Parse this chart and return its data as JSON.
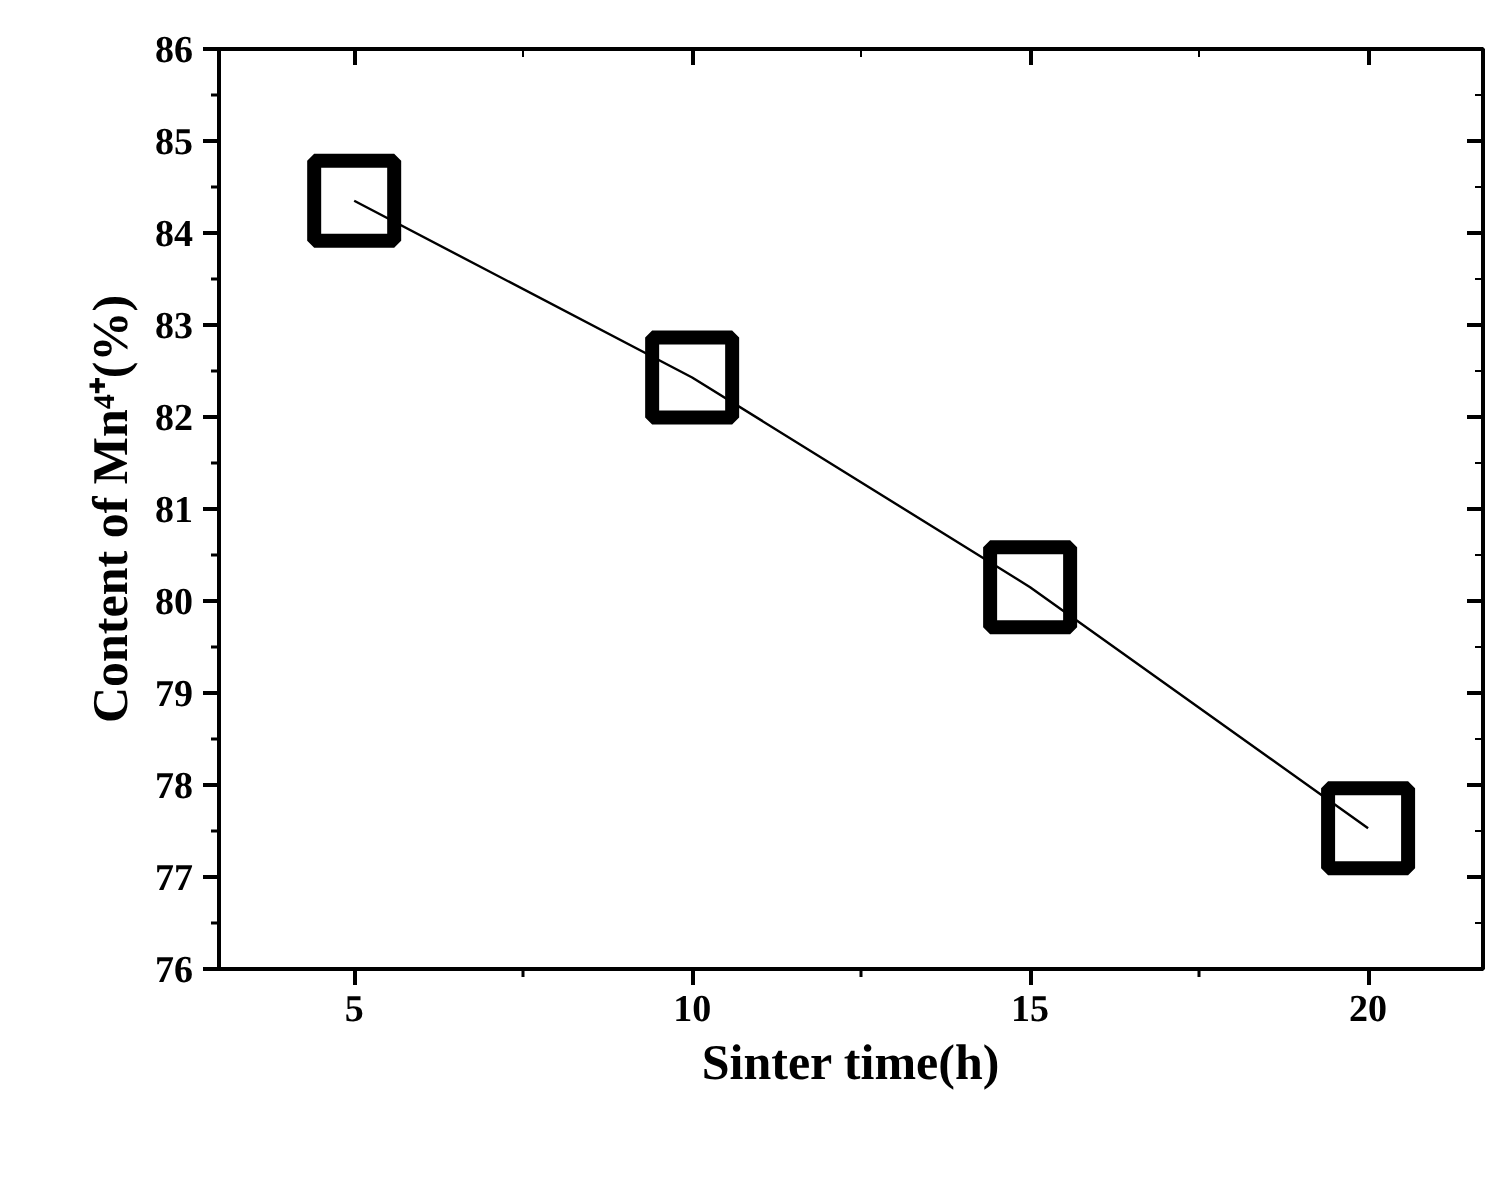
{
  "chart_data": {
    "type": "line",
    "xlabel": "Sinter time(h)",
    "ylabel": "Content of Mn⁴⁺(%)",
    "x": [
      5,
      10,
      15,
      20
    ],
    "series": [
      {
        "color": "#000000",
        "values": [
          84.35,
          82.43,
          80.15,
          77.53
        ]
      }
    ],
    "xlim": [
      3,
      21.7
    ],
    "ylim": [
      76,
      86
    ],
    "xticks": [
      5,
      10,
      15,
      20
    ],
    "yticks": [
      76,
      77,
      78,
      79,
      80,
      81,
      82,
      83,
      84,
      85,
      86
    ],
    "grid": false,
    "marker": "square",
    "line_style": "solid"
  }
}
